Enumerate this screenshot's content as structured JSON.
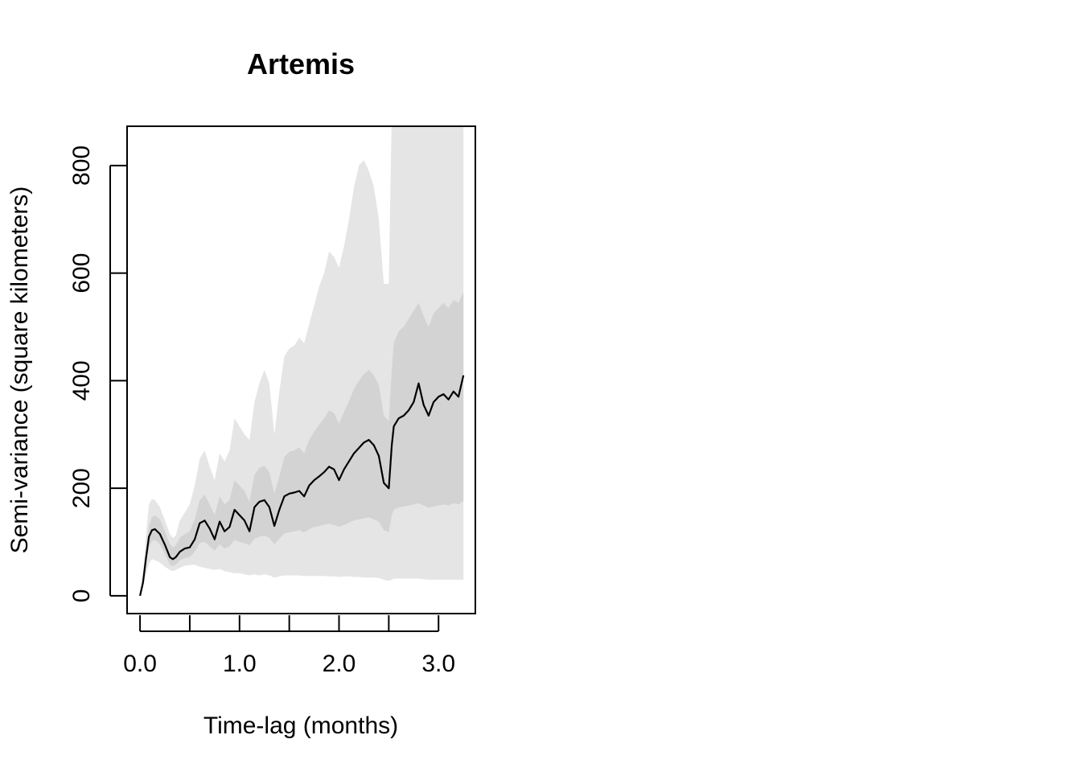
{
  "chart_data": {
    "type": "line",
    "title": "Artemis",
    "xlabel": "Time-lag (months)",
    "ylabel": "Semi-variance (square kilometers)",
    "xlim": [
      -0.13,
      3.37
    ],
    "ylim": [
      -33,
      873
    ],
    "x_ticks": [
      0,
      0.5,
      1.0,
      1.5,
      2.0,
      2.5,
      3.0
    ],
    "x_tick_labels": [
      "0.0",
      "",
      "1.0",
      "",
      "2.0",
      "",
      "3.0"
    ],
    "y_ticks": [
      0,
      200,
      400,
      600,
      800
    ],
    "y_tick_labels": [
      "0",
      "200",
      "400",
      "600",
      "800"
    ],
    "grid": false,
    "legend": "none",
    "colors": {
      "line": "#000000",
      "inner_band": "#d3d3d3",
      "outer_band": "#e5e5e5"
    },
    "series": [
      {
        "x": [
          0,
          0.03,
          0.06,
          0.09,
          0.12,
          0.15,
          0.2,
          0.25,
          0.3,
          0.33,
          0.36,
          0.4,
          0.45,
          0.5,
          0.55,
          0.6,
          0.65,
          0.7,
          0.75,
          0.8,
          0.85,
          0.9,
          0.95,
          1.0,
          1.05,
          1.1,
          1.15,
          1.2,
          1.25,
          1.3,
          1.35,
          1.4,
          1.45,
          1.5,
          1.55,
          1.6,
          1.65,
          1.7,
          1.75,
          1.8,
          1.85,
          1.9,
          1.95,
          2.0,
          2.05,
          2.1,
          2.15,
          2.2,
          2.25,
          2.3,
          2.35,
          2.4,
          2.45,
          2.5,
          2.53,
          2.55,
          2.6,
          2.65,
          2.7,
          2.75,
          2.8,
          2.85,
          2.9,
          2.95,
          3.0,
          3.05,
          3.1,
          3.15,
          3.2,
          3.25
        ],
        "values": [
          0,
          25,
          70,
          110,
          122,
          124,
          115,
          95,
          72,
          68,
          72,
          82,
          88,
          90,
          105,
          135,
          140,
          125,
          105,
          138,
          120,
          128,
          160,
          150,
          140,
          120,
          165,
          175,
          178,
          165,
          130,
          160,
          185,
          190,
          192,
          195,
          185,
          205,
          215,
          222,
          230,
          240,
          235,
          215,
          235,
          250,
          265,
          275,
          285,
          290,
          280,
          260,
          210,
          200,
          280,
          315,
          330,
          335,
          345,
          360,
          395,
          355,
          335,
          360,
          370,
          375,
          365,
          380,
          370,
          410
        ],
        "inner_lower": [
          0,
          22,
          58,
          90,
          102,
          104,
          96,
          78,
          58,
          55,
          58,
          66,
          70,
          72,
          82,
          98,
          100,
          92,
          84,
          96,
          88,
          92,
          104,
          100,
          98,
          94,
          106,
          110,
          112,
          108,
          96,
          106,
          116,
          118,
          120,
          122,
          118,
          124,
          128,
          130,
          132,
          134,
          132,
          128,
          132,
          136,
          140,
          142,
          144,
          146,
          142,
          138,
          122,
          118,
          150,
          160,
          164,
          166,
          168,
          170,
          172,
          168,
          164,
          166,
          168,
          170,
          168,
          172,
          170,
          176
        ],
        "inner_upper": [
          0,
          30,
          82,
          130,
          146,
          150,
          142,
          120,
          96,
          90,
          94,
          108,
          115,
          120,
          142,
          178,
          188,
          170,
          150,
          185,
          170,
          178,
          215,
          205,
          195,
          175,
          225,
          238,
          242,
          230,
          190,
          222,
          258,
          268,
          270,
          276,
          265,
          290,
          305,
          318,
          330,
          345,
          340,
          320,
          342,
          362,
          385,
          400,
          412,
          420,
          410,
          392,
          335,
          325,
          420,
          470,
          492,
          500,
          515,
          530,
          545,
          520,
          500,
          525,
          535,
          545,
          535,
          550,
          545,
          565
        ],
        "outer_lower": [
          0,
          15,
          40,
          60,
          68,
          66,
          62,
          54,
          48,
          46,
          48,
          52,
          56,
          57,
          58,
          54,
          52,
          50,
          48,
          50,
          46,
          44,
          42,
          42,
          40,
          38,
          40,
          38,
          40,
          38,
          34,
          36,
          38,
          38,
          38,
          38,
          37,
          37,
          37,
          37,
          37,
          36,
          36,
          35,
          36,
          36,
          35,
          35,
          34,
          34,
          34,
          33,
          30,
          28,
          30,
          32,
          32,
          32,
          32,
          32,
          32,
          31,
          30,
          30,
          30,
          30,
          30,
          30,
          30,
          30
        ],
        "outer_upper": [
          0,
          40,
          110,
          170,
          180,
          178,
          165,
          140,
          115,
          108,
          112,
          140,
          155,
          170,
          205,
          255,
          270,
          240,
          215,
          265,
          250,
          270,
          330,
          315,
          300,
          290,
          360,
          395,
          420,
          395,
          300,
          380,
          445,
          460,
          465,
          480,
          470,
          505,
          540,
          575,
          600,
          640,
          630,
          610,
          650,
          700,
          760,
          800,
          810,
          790,
          760,
          700,
          580,
          580,
          900,
          900,
          900,
          900,
          900,
          900,
          900,
          900,
          900,
          900,
          900,
          900,
          900,
          900,
          900,
          900
        ]
      }
    ]
  }
}
